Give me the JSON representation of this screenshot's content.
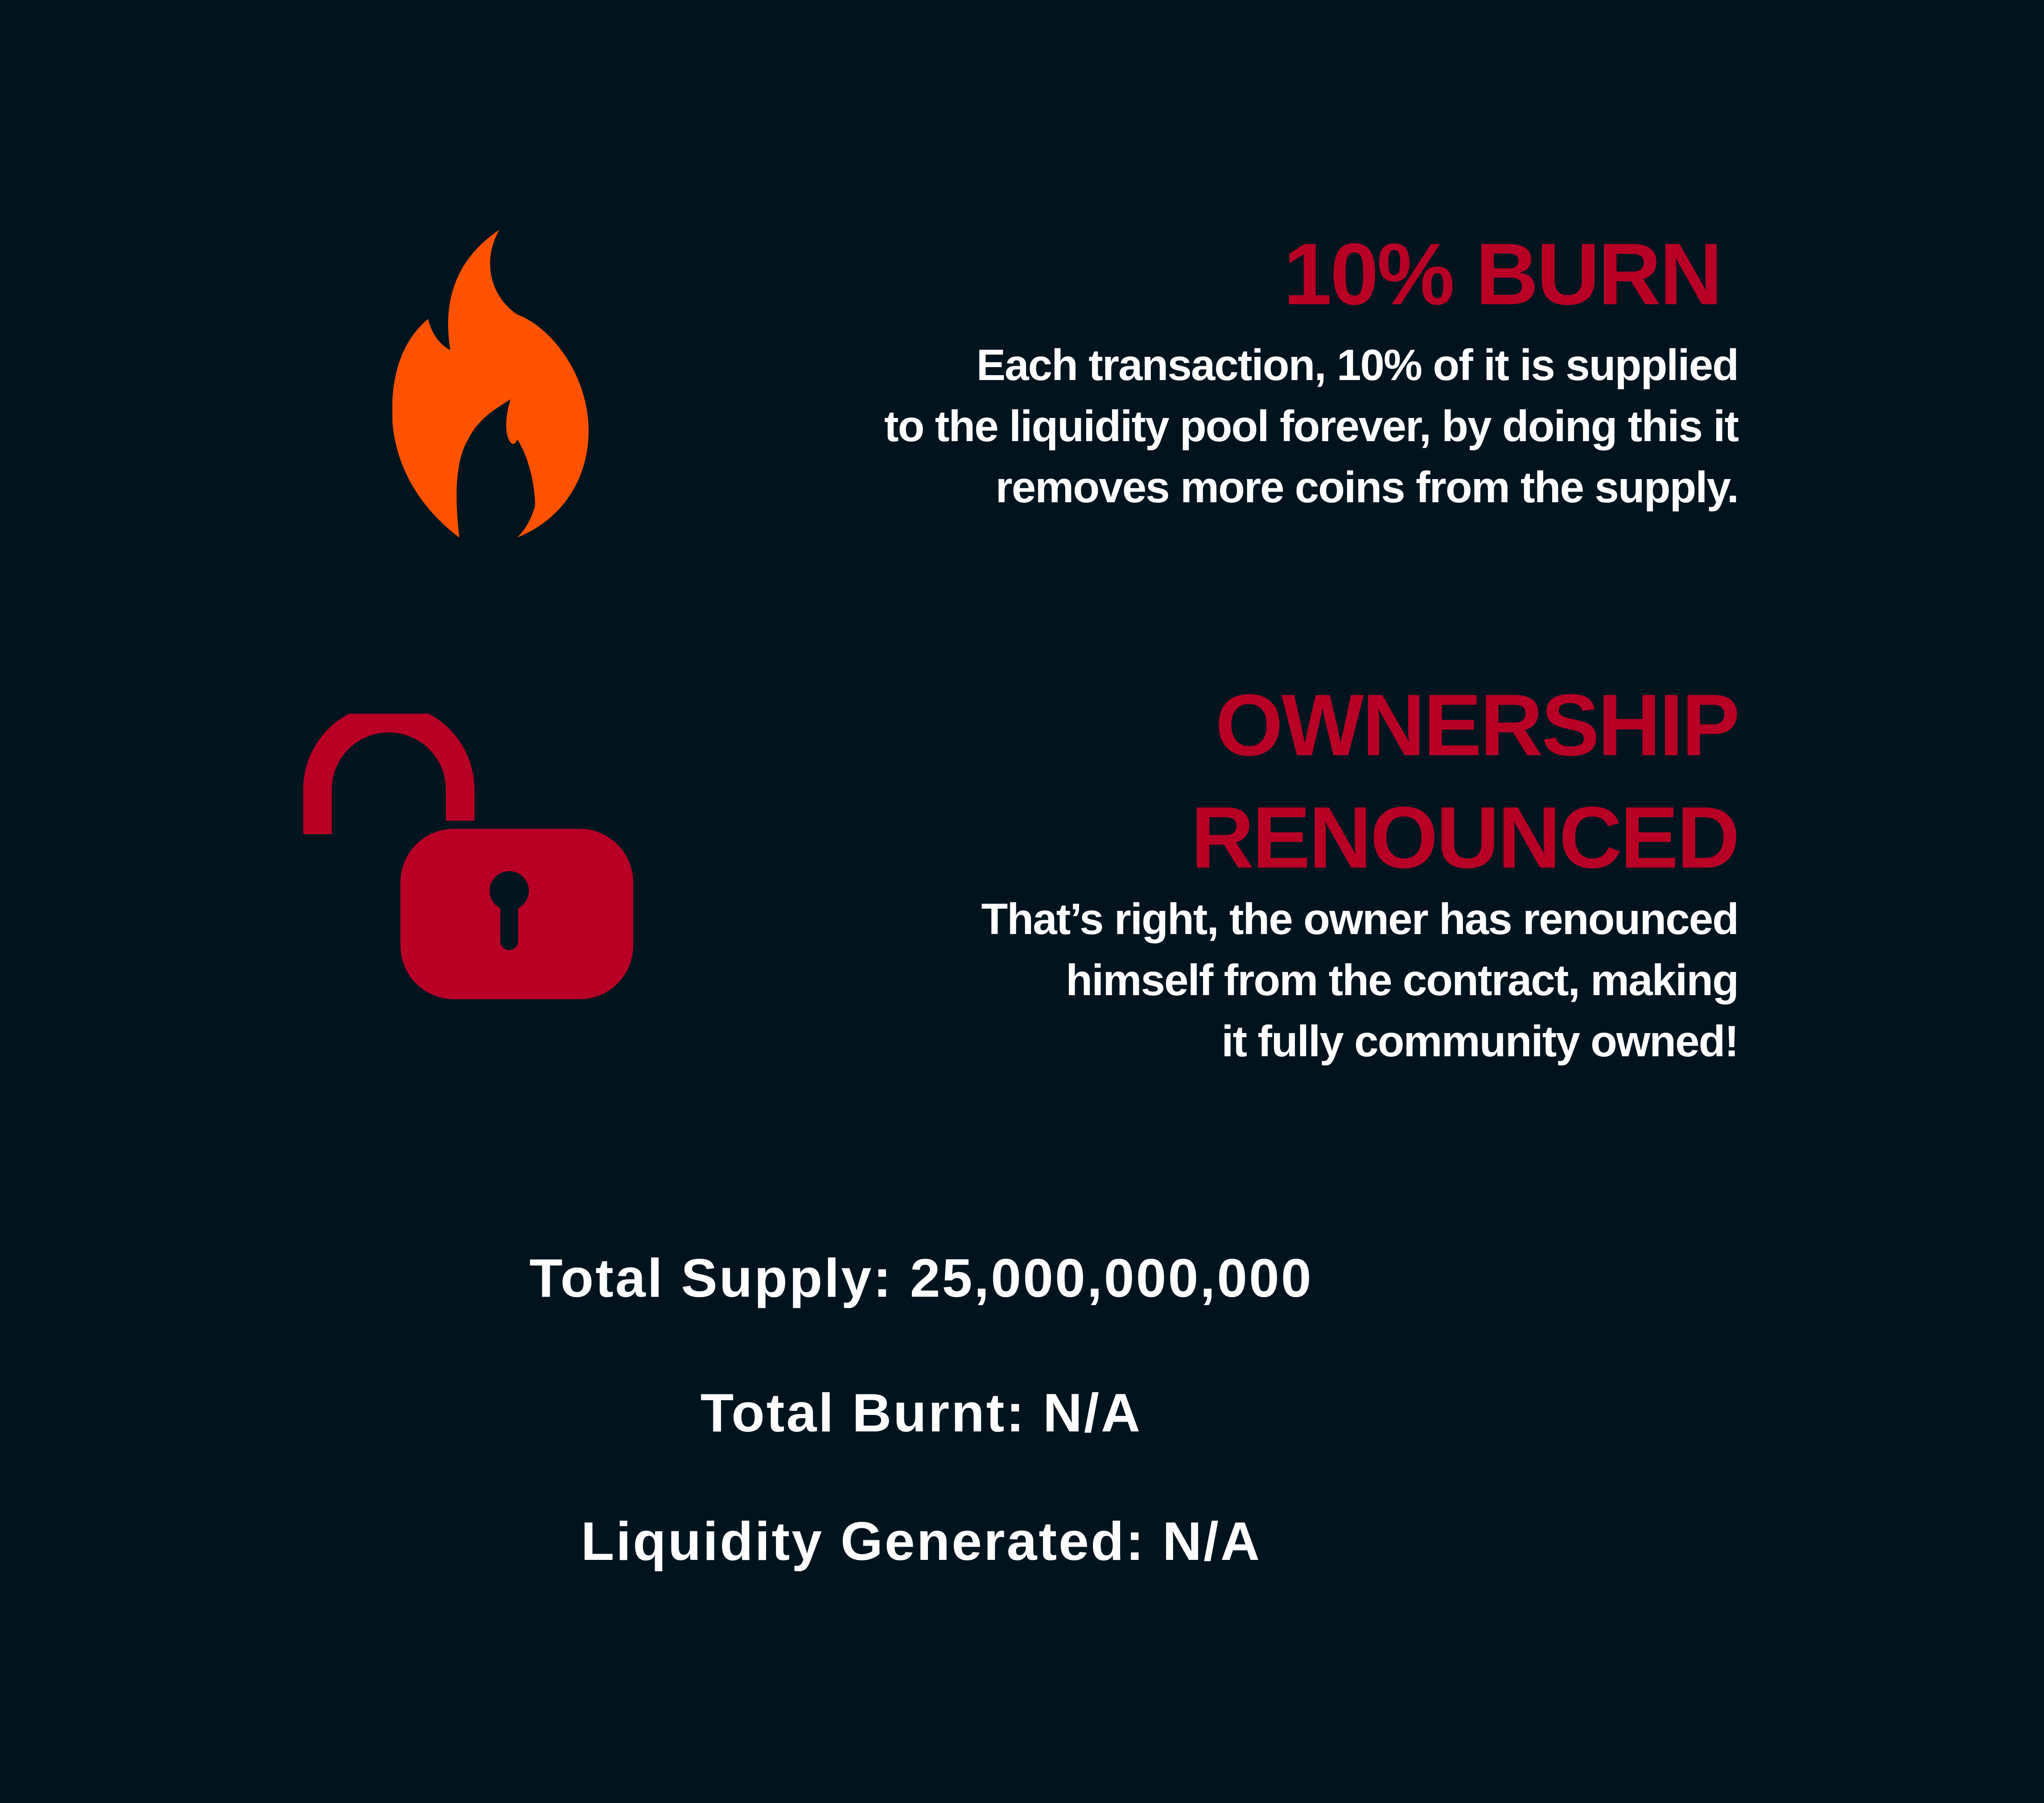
{
  "colors": {
    "background": "#01141e",
    "accent_red": "#b70024",
    "flame_orange": "#ff5200",
    "text": "#ffffff"
  },
  "burn": {
    "icon": "flame-icon",
    "title": "10% BURN",
    "description_lines": [
      "Each transaction, 10% of it is supplied",
      "to the liquidity pool forever, by doing this it",
      "removes more coins from the supply."
    ]
  },
  "ownership": {
    "icon": "unlocked-padlock-icon",
    "title_lines": [
      "OWNERSHIP",
      "RENOUNCED"
    ],
    "description_lines": [
      "That’s right, the owner has renounced",
      "himself from the contract, making",
      "it fully community owned!"
    ]
  },
  "stats": {
    "total_supply": "Total Supply: 25,000,000,000",
    "total_burnt": "Total Burnt: N/A",
    "liquidity_generated": "Liquidity Generated: N/A"
  }
}
